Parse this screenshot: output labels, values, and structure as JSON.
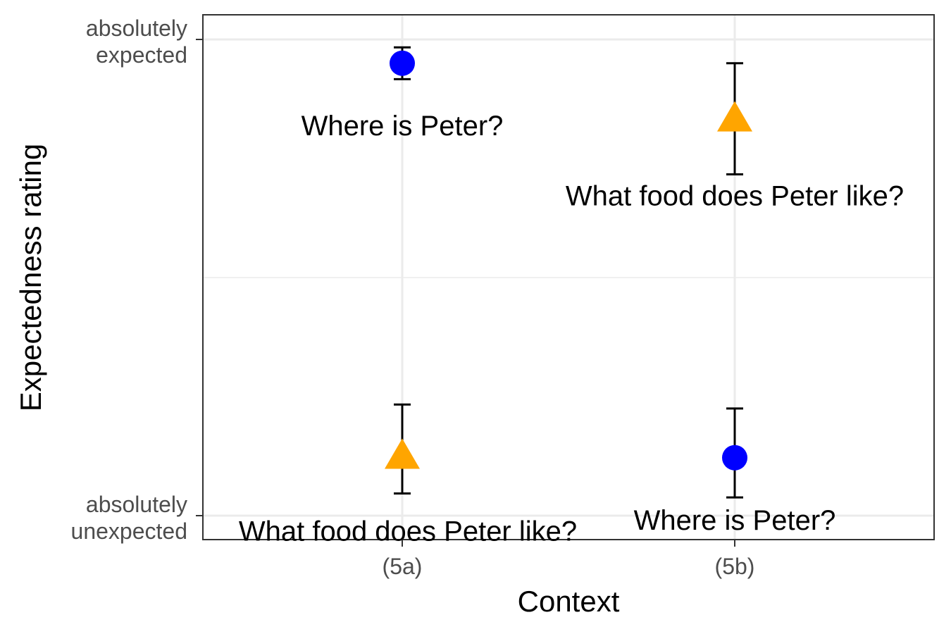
{
  "chart_data": {
    "type": "scatter",
    "title": "",
    "xlabel": "Context",
    "ylabel": "Expectedness rating",
    "categories": [
      "(5a)",
      "(5b)"
    ],
    "ylim": [
      1,
      7
    ],
    "y_ticks": [
      {
        "value": 7,
        "lines": [
          "absolutely",
          "expected"
        ]
      },
      {
        "value": 1,
        "lines": [
          "absolutely",
          "unexpected"
        ]
      }
    ],
    "grid": true,
    "legend": "none",
    "points": [
      {
        "category": "(5a)",
        "label": "Where is Peter?",
        "shape": "circle",
        "color": "#0000ff",
        "y": 6.7,
        "y_low": 6.5,
        "y_high": 6.9
      },
      {
        "category": "(5a)",
        "label": "What food does Peter like?",
        "shape": "triangle",
        "color": "#ffa500",
        "y": 1.75,
        "y_low": 1.28,
        "y_high": 2.4
      },
      {
        "category": "(5b)",
        "label": "What food does Peter like?",
        "shape": "triangle",
        "color": "#ffa500",
        "y": 6.0,
        "y_low": 5.3,
        "y_high": 6.7
      },
      {
        "category": "(5b)",
        "label": "Where is Peter?",
        "shape": "circle",
        "color": "#0000ff",
        "y": 1.73,
        "y_low": 1.23,
        "y_high": 2.35
      }
    ]
  }
}
